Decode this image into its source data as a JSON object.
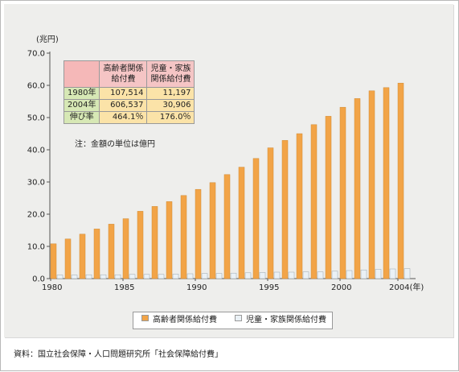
{
  "chart_data": {
    "type": "bar",
    "y_unit_label": "(兆円)",
    "ylim": [
      0,
      70
    ],
    "yticks": [
      "0.0",
      "10.0",
      "20.0",
      "30.0",
      "40.0",
      "50.0",
      "60.0",
      "70.0"
    ],
    "x": [
      1980,
      1981,
      1982,
      1983,
      1984,
      1985,
      1986,
      1987,
      1988,
      1989,
      1990,
      1991,
      1992,
      1993,
      1994,
      1995,
      1996,
      1997,
      1998,
      1999,
      2000,
      2001,
      2002,
      2003,
      2004
    ],
    "xtick_labels": [
      {
        "year": 1980,
        "label": "1980"
      },
      {
        "year": 1985,
        "label": "1985"
      },
      {
        "year": 1990,
        "label": "1990"
      },
      {
        "year": 1995,
        "label": "1995"
      },
      {
        "year": 2000,
        "label": "2000"
      },
      {
        "year": 2004,
        "label": "2004(年)"
      }
    ],
    "grid": false,
    "legend_position": "bottom",
    "series": [
      {
        "name": "高齢者関係給付費",
        "color": "#f2a447",
        "values": [
          10.8,
          12.3,
          13.8,
          15.4,
          16.9,
          18.6,
          20.9,
          22.4,
          23.9,
          25.8,
          27.7,
          29.8,
          32.3,
          34.6,
          37.3,
          40.6,
          42.9,
          45.0,
          47.8,
          50.4,
          53.2,
          55.9,
          58.3,
          59.3,
          60.7
        ]
      },
      {
        "name": "児童・家族関係給付費",
        "color": "#eaf1f6",
        "values": [
          1.1,
          1.1,
          1.2,
          1.2,
          1.2,
          1.3,
          1.3,
          1.3,
          1.4,
          1.5,
          1.6,
          1.6,
          1.7,
          1.8,
          1.9,
          2.0,
          2.0,
          2.1,
          2.1,
          2.3,
          2.5,
          2.7,
          2.9,
          3.0,
          3.1
        ]
      }
    ]
  },
  "table": {
    "col_headers": [
      "高齢者関係\n給付費",
      "児童・家族\n関係給付費"
    ],
    "rows": [
      {
        "label": "1980年",
        "values": [
          "107,514",
          "11,197"
        ]
      },
      {
        "label": "2004年",
        "values": [
          "606,537",
          "30,906"
        ]
      },
      {
        "label": "伸び率",
        "values": [
          "464.1％",
          "176.0％"
        ]
      }
    ],
    "note": "注：金額の単位は億円"
  },
  "source": "資料：国立社会保障・人口問題研究所「社会保障給付費」"
}
